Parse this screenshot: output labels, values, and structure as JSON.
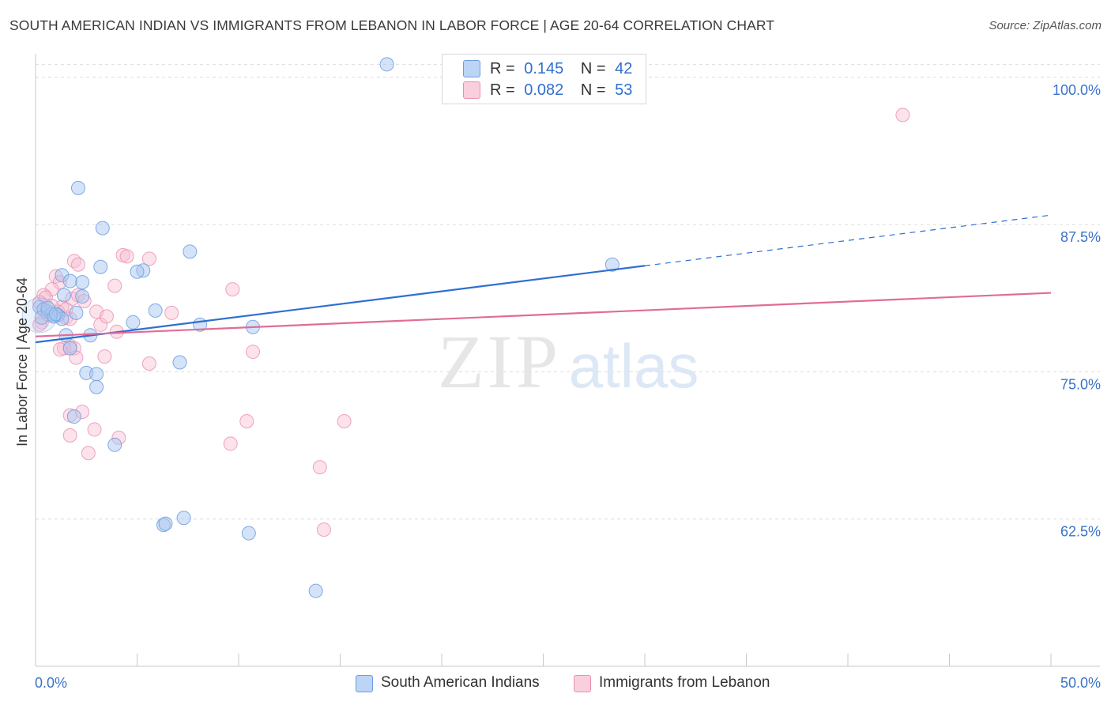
{
  "title": "SOUTH AMERICAN INDIAN VS IMMIGRANTS FROM LEBANON IN LABOR FORCE | AGE 20-64 CORRELATION CHART",
  "source": "Source: ZipAtlas.com",
  "watermark": {
    "zip": "ZIP",
    "atlas": "atlas"
  },
  "legend": {
    "series1": {
      "r_label": "R =",
      "r_value": "0.145",
      "n_label": "N =",
      "n_value": "42"
    },
    "series2": {
      "r_label": "R =",
      "r_value": "0.082",
      "n_label": "N =",
      "n_value": "53"
    }
  },
  "chart_data": {
    "type": "scatter",
    "title": "SOUTH AMERICAN INDIAN VS IMMIGRANTS FROM LEBANON IN LABOR FORCE | AGE 20-64 CORRELATION CHART",
    "xlabel": "",
    "ylabel": "In Labor Force | Age 20-64",
    "xlim": [
      0,
      50
    ],
    "ylim": [
      50,
      102
    ],
    "x_tick_labels": [
      {
        "value": 0,
        "label": "0.0%"
      },
      {
        "value": 50,
        "label": "50.0%"
      }
    ],
    "y_tick_labels": [
      {
        "value": 62.5,
        "label": "62.5%"
      },
      {
        "value": 75.0,
        "label": "75.0%"
      },
      {
        "value": 87.5,
        "label": "87.5%"
      },
      {
        "value": 100.0,
        "label": "100.0%"
      }
    ],
    "grid": true,
    "colors": {
      "series1": "#a9c8f0",
      "series1_edge": "#6d9de0",
      "series1_line": "#2f6fcf",
      "series2": "#f6bfd2",
      "series2_edge": "#ea8fb0",
      "series2_line": "#e06c97",
      "axis_label": "#3b73c8",
      "grid": "#dcdcdc"
    },
    "series": [
      {
        "name": "South American Indians",
        "r": 0.145,
        "n": 42,
        "trend": {
          "x0": 0,
          "y0": 77.5,
          "x1": 30,
          "y1": 84.0,
          "dash_to_x": 50,
          "dash_to_y": 88.3
        },
        "points": [
          [
            17.3,
            101.1
          ],
          [
            2.1,
            90.6
          ],
          [
            3.3,
            87.2
          ],
          [
            7.6,
            85.2
          ],
          [
            3.2,
            83.9
          ],
          [
            5.3,
            83.6
          ],
          [
            5.0,
            83.5
          ],
          [
            1.3,
            83.2
          ],
          [
            2.3,
            82.6
          ],
          [
            1.7,
            82.7
          ],
          [
            1.4,
            81.5
          ],
          [
            2.3,
            81.4
          ],
          [
            0.2,
            80.5
          ],
          [
            0.4,
            80.3
          ],
          [
            0.6,
            80.1
          ],
          [
            0.8,
            79.9
          ],
          [
            0.3,
            79.6
          ],
          [
            1.1,
            79.8
          ],
          [
            1.3,
            79.5
          ],
          [
            0.9,
            79.7
          ],
          [
            5.9,
            80.2
          ],
          [
            4.8,
            79.2
          ],
          [
            8.1,
            79.0
          ],
          [
            10.7,
            78.8
          ],
          [
            1.5,
            78.1
          ],
          [
            2.7,
            78.1
          ],
          [
            1.7,
            77.0
          ],
          [
            7.1,
            75.8
          ],
          [
            2.5,
            74.9
          ],
          [
            3.0,
            74.8
          ],
          [
            3.0,
            73.7
          ],
          [
            1.9,
            71.2
          ],
          [
            3.9,
            68.8
          ],
          [
            7.3,
            62.6
          ],
          [
            6.3,
            62.0
          ],
          [
            6.4,
            62.1
          ],
          [
            10.5,
            61.3
          ],
          [
            13.8,
            56.4
          ],
          [
            28.4,
            84.1
          ],
          [
            0.6,
            80.4
          ],
          [
            1.0,
            79.9
          ],
          [
            2.0,
            80.0
          ]
        ]
      },
      {
        "name": "Immigrants from Lebanon",
        "r": 0.082,
        "n": 53,
        "trend": {
          "x0": 0,
          "y0": 78.0,
          "x1": 50,
          "y1": 81.7
        },
        "points": [
          [
            42.7,
            96.8
          ],
          [
            4.3,
            84.9
          ],
          [
            5.6,
            84.6
          ],
          [
            1.9,
            84.4
          ],
          [
            2.1,
            84.1
          ],
          [
            4.5,
            84.8
          ],
          [
            1.0,
            83.1
          ],
          [
            1.2,
            82.6
          ],
          [
            3.9,
            82.3
          ],
          [
            0.8,
            82.0
          ],
          [
            9.7,
            82.0
          ],
          [
            0.4,
            81.5
          ],
          [
            0.5,
            81.3
          ],
          [
            1.8,
            81.2
          ],
          [
            2.1,
            81.5
          ],
          [
            0.2,
            80.9
          ],
          [
            1.3,
            80.5
          ],
          [
            0.4,
            80.2
          ],
          [
            3.0,
            80.1
          ],
          [
            6.7,
            80.0
          ],
          [
            0.7,
            79.8
          ],
          [
            1.5,
            79.6
          ],
          [
            0.9,
            79.8
          ],
          [
            1.7,
            79.5
          ],
          [
            3.2,
            79.0
          ],
          [
            4.0,
            78.4
          ],
          [
            1.7,
            77.2
          ],
          [
            1.9,
            77.0
          ],
          [
            1.4,
            77.0
          ],
          [
            1.2,
            76.9
          ],
          [
            10.7,
            76.7
          ],
          [
            3.4,
            76.3
          ],
          [
            2.0,
            76.2
          ],
          [
            5.6,
            75.7
          ],
          [
            2.3,
            71.6
          ],
          [
            1.7,
            71.3
          ],
          [
            10.4,
            70.8
          ],
          [
            15.2,
            70.8
          ],
          [
            2.9,
            70.1
          ],
          [
            1.7,
            69.6
          ],
          [
            4.1,
            69.4
          ],
          [
            9.6,
            68.9
          ],
          [
            2.6,
            68.1
          ],
          [
            14.0,
            66.9
          ],
          [
            14.2,
            61.6
          ],
          [
            0.3,
            79.2
          ],
          [
            1.1,
            80.1
          ],
          [
            0.6,
            79.9
          ],
          [
            2.4,
            81.0
          ],
          [
            1.5,
            80.3
          ],
          [
            0.8,
            80.6
          ],
          [
            3.5,
            79.7
          ],
          [
            0.2,
            79.0
          ]
        ]
      }
    ],
    "big_point": {
      "series": 0,
      "x": 0.2,
      "y": 79.8
    }
  },
  "bottom_legend": {
    "item1": "South American Indians",
    "item2": "Immigrants from Lebanon"
  }
}
